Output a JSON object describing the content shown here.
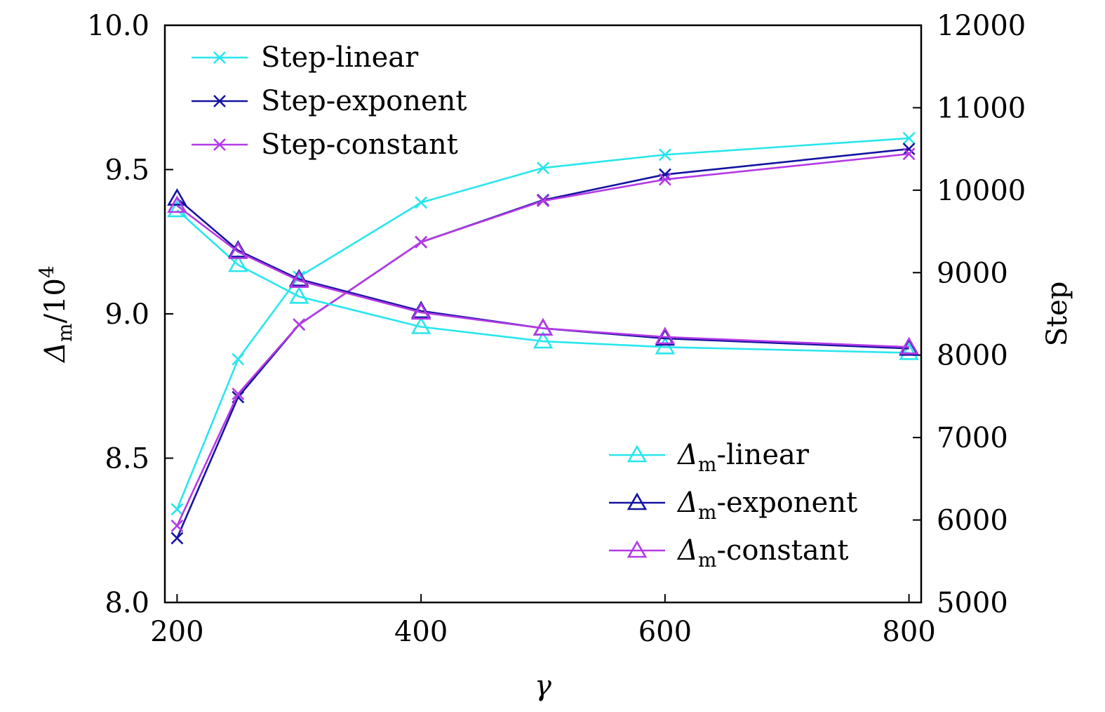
{
  "chart_data": {
    "type": "line",
    "x": [
      200,
      250,
      300,
      400,
      500,
      600,
      800
    ],
    "xlabel": "γ",
    "xlim": [
      190,
      810
    ],
    "xticks": [
      "200",
      "400",
      "600",
      "800"
    ],
    "left_axis": {
      "label_symbol": "Δ",
      "label_sub": "m",
      "label_suffix": "/10",
      "label_sup": "4",
      "ylim": [
        8.0,
        10.0
      ],
      "ticks": [
        "8.0",
        "8.5",
        "9.0",
        "9.5",
        "10.0"
      ]
    },
    "right_axis": {
      "label": "Step",
      "ylim": [
        5000,
        12000
      ],
      "ticks": [
        "5000",
        "6000",
        "7000",
        "8000",
        "9000",
        "10000",
        "11000",
        "12000"
      ]
    },
    "series": [
      {
        "name": "Step-linear",
        "axis": "right",
        "marker": "x",
        "color": "#28e6ee",
        "values": [
          6130,
          7950,
          8950,
          9850,
          10270,
          10430,
          10630
        ]
      },
      {
        "name": "Step-exponent",
        "axis": "right",
        "marker": "x",
        "color": "#1414a0",
        "values": [
          5780,
          7490,
          8370,
          9370,
          9880,
          10190,
          10500
        ]
      },
      {
        "name": "Step-constant",
        "axis": "right",
        "marker": "x",
        "color": "#b43ae6",
        "values": [
          5930,
          7530,
          8370,
          9370,
          9870,
          10130,
          10440
        ]
      },
      {
        "name_symbol": "Δ",
        "name_sub": "m",
        "name_suffix": "-linear",
        "axis": "left",
        "marker": "triangle",
        "color": "#28e6ee",
        "values": [
          9.36,
          9.17,
          9.06,
          8.955,
          8.905,
          8.885,
          8.865
        ]
      },
      {
        "name_symbol": "Δ",
        "name_sub": "m",
        "name_suffix": "-exponent",
        "axis": "left",
        "marker": "triangle",
        "color": "#1414a0",
        "values": [
          9.4,
          9.22,
          9.12,
          9.01,
          8.95,
          8.915,
          8.88
        ]
      },
      {
        "name_symbol": "Δ",
        "name_sub": "m",
        "name_suffix": "-constant",
        "axis": "left",
        "marker": "triangle",
        "color": "#b43ae6",
        "values": [
          9.375,
          9.215,
          9.115,
          9.005,
          8.95,
          8.92,
          8.885
        ]
      }
    ],
    "legends": {
      "step": "top-left",
      "delta": "bottom-right"
    }
  }
}
